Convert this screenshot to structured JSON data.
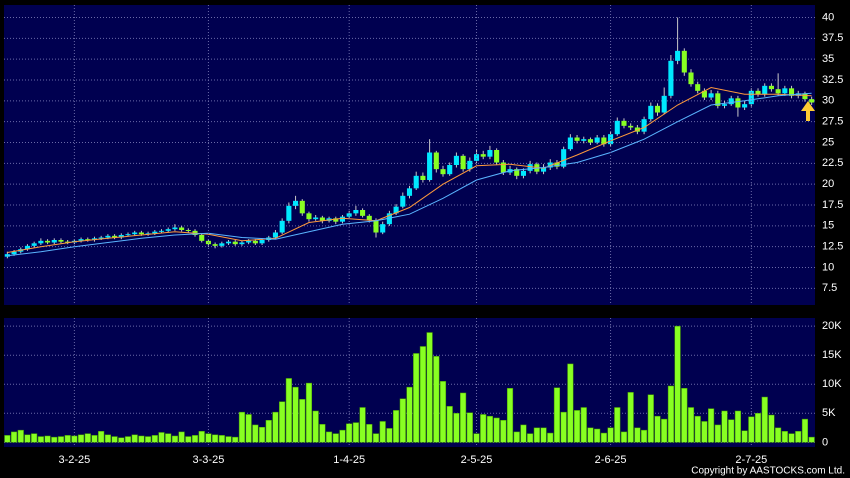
{
  "chart_data": [
    {
      "type": "candlestick",
      "up_color": "#00e8ff",
      "down_color": "#88ff22",
      "ylim": [
        5.5,
        41.5
      ],
      "yticks": [
        7.5,
        10,
        12.5,
        15,
        17.5,
        20,
        22.5,
        25,
        27.5,
        30,
        32.5,
        35,
        37.5,
        40
      ],
      "grid": true,
      "open": [
        11.3,
        11.6,
        11.9,
        12.2,
        12.6,
        12.9,
        13.2,
        13.0,
        13.3,
        13.1,
        13.0,
        13.2,
        13.4,
        13.3,
        13.5,
        13.6,
        13.8,
        13.6,
        13.9,
        14.0,
        14.2,
        14.0,
        14.1,
        14.3,
        14.4,
        14.6,
        14.8,
        14.5,
        14.4,
        13.9,
        13.2,
        12.8,
        12.6,
        12.9,
        13.1,
        12.8,
        13.0,
        13.2,
        12.9,
        13.3,
        13.6,
        14.2,
        15.6,
        17.4,
        18.0,
        16.5,
        15.8,
        16.0,
        15.6,
        15.9,
        15.5,
        16.1,
        16.5,
        16.9,
        16.2,
        15.7,
        14.2,
        15.2,
        16.5,
        17.3,
        18.6,
        19.5,
        21.0,
        20.5,
        23.8,
        21.8,
        21.2,
        22.3,
        23.4,
        21.8,
        22.8,
        23.6,
        23.3,
        24.1,
        22.6,
        21.4,
        21.8,
        21.0,
        21.6,
        22.4,
        21.5,
        22.0,
        22.6,
        22.1,
        24.2,
        25.6,
        25.2,
        25.4,
        25.0,
        25.6,
        24.8,
        26.0,
        27.6,
        27.0,
        26.8,
        26.3,
        27.8,
        29.4,
        28.6,
        30.6,
        34.8,
        36.0,
        33.4,
        32.0,
        31.2,
        30.4,
        30.9,
        29.4,
        29.6,
        30.3,
        29.2,
        29.6,
        31.2,
        30.8,
        31.8,
        31.4,
        30.9,
        31.5,
        30.6,
        30.9,
        30.2
      ],
      "high": [
        11.9,
        12.1,
        12.4,
        12.8,
        13.1,
        13.5,
        13.4,
        13.5,
        13.5,
        13.3,
        13.4,
        13.6,
        13.6,
        13.7,
        13.8,
        14.0,
        14.0,
        14.1,
        14.2,
        14.4,
        14.4,
        14.3,
        14.5,
        14.6,
        14.8,
        15.2,
        15.0,
        14.7,
        14.6,
        14.1,
        13.4,
        13.0,
        13.1,
        13.3,
        13.3,
        13.2,
        13.4,
        13.4,
        13.5,
        13.8,
        14.5,
        15.9,
        17.8,
        18.6,
        18.2,
        16.7,
        16.3,
        16.2,
        16.1,
        16.1,
        16.3,
        16.8,
        17.4,
        17.1,
        16.4,
        15.9,
        15.5,
        16.8,
        17.6,
        19.0,
        19.8,
        21.5,
        21.4,
        25.4,
        24.0,
        22.2,
        22.6,
        23.8,
        23.6,
        23.2,
        24.2,
        24.0,
        24.6,
        24.3,
        22.9,
        22.2,
        22.0,
        21.9,
        22.8,
        22.6,
        22.4,
        23.0,
        22.9,
        24.5,
        26.0,
        25.9,
        25.7,
        25.6,
        25.9,
        25.9,
        26.3,
        28.0,
        27.9,
        27.3,
        27.1,
        28.1,
        29.8,
        29.7,
        31.6,
        35.5,
        40.0,
        36.3,
        33.8,
        32.3,
        31.5,
        31.3,
        31.2,
        30.0,
        30.6,
        30.6,
        30.0,
        31.5,
        31.5,
        32.1,
        32.1,
        33.3,
        31.8,
        31.8,
        31.2,
        31.1,
        30.5
      ],
      "low": [
        11.1,
        11.4,
        11.7,
        12.0,
        12.4,
        12.7,
        12.8,
        12.8,
        12.9,
        12.8,
        12.8,
        13.0,
        13.1,
        13.1,
        13.3,
        13.4,
        13.4,
        13.4,
        13.7,
        13.8,
        13.8,
        13.8,
        13.9,
        14.1,
        14.2,
        14.4,
        14.3,
        14.2,
        13.7,
        13.0,
        12.5,
        12.3,
        12.4,
        12.7,
        12.6,
        12.6,
        12.8,
        12.7,
        12.7,
        13.1,
        13.4,
        14.0,
        15.3,
        17.0,
        16.2,
        15.5,
        15.6,
        15.3,
        15.4,
        15.2,
        15.3,
        15.9,
        16.2,
        16.0,
        15.4,
        13.6,
        14.0,
        15.0,
        16.3,
        17.1,
        18.3,
        19.3,
        20.2,
        20.3,
        21.4,
        20.9,
        21.0,
        22.0,
        21.5,
        21.5,
        22.5,
        23.0,
        23.0,
        22.3,
        21.1,
        21.1,
        20.6,
        20.7,
        21.3,
        21.2,
        21.2,
        21.7,
        21.8,
        21.9,
        24.0,
        24.9,
        24.9,
        24.7,
        24.8,
        24.5,
        24.5,
        25.8,
        26.7,
        26.5,
        26.0,
        26.0,
        27.5,
        28.2,
        28.4,
        30.3,
        34.4,
        33.0,
        31.7,
        30.9,
        30.1,
        30.1,
        29.1,
        29.1,
        29.4,
        28.1,
        28.9,
        29.3,
        30.5,
        30.5,
        31.1,
        30.6,
        30.6,
        30.3,
        30.3,
        29.9,
        29.5
      ],
      "close": [
        11.6,
        11.9,
        12.2,
        12.6,
        12.9,
        13.2,
        13.0,
        13.3,
        13.1,
        13.0,
        13.2,
        13.4,
        13.3,
        13.5,
        13.6,
        13.8,
        13.6,
        13.9,
        14.0,
        14.2,
        14.0,
        14.1,
        14.3,
        14.4,
        14.6,
        14.8,
        14.5,
        14.4,
        13.9,
        13.2,
        12.8,
        12.6,
        12.9,
        13.1,
        12.8,
        13.0,
        13.2,
        12.9,
        13.3,
        13.6,
        14.2,
        15.6,
        17.4,
        18.0,
        16.5,
        15.8,
        16.0,
        15.6,
        15.9,
        15.5,
        16.1,
        16.5,
        16.9,
        16.2,
        15.7,
        14.2,
        15.2,
        16.5,
        17.3,
        18.6,
        19.5,
        21.0,
        20.5,
        23.8,
        21.8,
        21.2,
        22.3,
        23.4,
        21.8,
        22.8,
        23.6,
        23.3,
        24.1,
        22.6,
        21.4,
        21.8,
        21.0,
        21.6,
        22.4,
        21.5,
        22.0,
        22.6,
        22.1,
        24.2,
        25.6,
        25.2,
        25.4,
        25.0,
        25.6,
        24.8,
        26.0,
        27.6,
        27.0,
        26.8,
        26.3,
        27.8,
        29.4,
        28.6,
        30.6,
        34.8,
        36.0,
        33.4,
        32.0,
        31.2,
        30.4,
        30.9,
        29.4,
        29.6,
        30.3,
        29.2,
        29.6,
        31.2,
        30.8,
        31.8,
        31.4,
        30.9,
        31.5,
        30.6,
        30.9,
        30.2,
        29.8
      ],
      "lines": [
        {
          "color": "#ff9a3c",
          "x": [
            0,
            5,
            10,
            15,
            20,
            25,
            30,
            35,
            40,
            45,
            50,
            55,
            60,
            65,
            70,
            75,
            80,
            85,
            90,
            95,
            100,
            105,
            110,
            115,
            120
          ],
          "values": [
            11.8,
            12.5,
            13.1,
            13.5,
            13.9,
            14.3,
            14.0,
            13.2,
            13.5,
            15.4,
            15.9,
            15.6,
            17.2,
            20.0,
            22.2,
            22.4,
            21.9,
            23.5,
            25.2,
            26.8,
            29.5,
            31.6,
            30.8,
            30.8,
            30.6
          ]
        },
        {
          "color": "#5ab4ff",
          "x": [
            0,
            5,
            10,
            15,
            20,
            25,
            30,
            35,
            40,
            45,
            50,
            55,
            60,
            65,
            70,
            75,
            80,
            85,
            90,
            95,
            100,
            105,
            110,
            115,
            120
          ],
          "values": [
            11.4,
            11.9,
            12.5,
            13.0,
            13.5,
            13.9,
            14.1,
            13.6,
            13.4,
            14.3,
            15.2,
            15.6,
            16.4,
            18.3,
            20.5,
            21.6,
            22.0,
            22.6,
            23.8,
            25.4,
            27.5,
            29.5,
            30.0,
            30.6,
            30.9
          ]
        }
      ]
    },
    {
      "type": "bar",
      "color": "#88ff22",
      "ylim": [
        -800,
        21400
      ],
      "yticks": [
        0,
        {
          "value": 5000,
          "label": "5K"
        },
        {
          "value": 10000,
          "label": "10K"
        },
        {
          "value": 15000,
          "label": "15K"
        },
        {
          "value": 20000,
          "label": "20K"
        }
      ],
      "grid": true,
      "categories": [
        null,
        null,
        null,
        null,
        null,
        null,
        null,
        null,
        null,
        null,
        "3-2-25",
        null,
        null,
        null,
        null,
        null,
        null,
        null,
        null,
        null,
        null,
        null,
        null,
        null,
        null,
        null,
        null,
        null,
        null,
        null,
        "3-3-25",
        null,
        null,
        null,
        null,
        null,
        null,
        null,
        null,
        null,
        null,
        null,
        null,
        null,
        null,
        null,
        null,
        null,
        null,
        null,
        null,
        "1-4-25",
        null,
        null,
        null,
        null,
        null,
        null,
        null,
        null,
        null,
        null,
        null,
        null,
        null,
        null,
        null,
        null,
        null,
        null,
        "2-5-25",
        null,
        null,
        null,
        null,
        null,
        null,
        null,
        null,
        null,
        null,
        null,
        null,
        null,
        null,
        null,
        null,
        null,
        null,
        null,
        "2-6-25",
        null,
        null,
        null,
        null,
        null,
        null,
        null,
        null,
        null,
        null,
        null,
        null,
        null,
        null,
        null,
        null,
        null,
        null,
        null,
        null,
        "2-7-25",
        null,
        null,
        null,
        null,
        null,
        null,
        null,
        null,
        null
      ],
      "values": [
        1200,
        1800,
        2100,
        1300,
        1500,
        1000,
        1100,
        900,
        1000,
        1200,
        1100,
        1300,
        1500,
        1200,
        1900,
        1300,
        1000,
        800,
        1000,
        1300,
        1100,
        1000,
        1200,
        1700,
        1500,
        1100,
        1800,
        1000,
        1200,
        1900,
        1500,
        1300,
        1200,
        1000,
        900,
        5200,
        4800,
        3000,
        2600,
        3800,
        5200,
        7000,
        11000,
        9500,
        7400,
        10200,
        5400,
        3100,
        1800,
        1500,
        2100,
        3200,
        3400,
        6000,
        3100,
        1500,
        3600,
        2400,
        5500,
        7500,
        9500,
        15300,
        16500,
        18900,
        14800,
        10500,
        6200,
        5000,
        8500,
        5100,
        1500,
        4800,
        4500,
        4200,
        3800,
        9300,
        1800,
        3000,
        1500,
        2500,
        2500,
        1600,
        9400,
        5200,
        13500,
        5500,
        6000,
        2500,
        2300,
        1600,
        2500,
        6000,
        1800,
        8600,
        2500,
        2100,
        8200,
        4500,
        4000,
        9700,
        20000,
        9300,
        6000,
        4500,
        3600,
        5800,
        3000,
        5400,
        3900,
        5400,
        2000,
        4400,
        5000,
        7800,
        4700,
        2500,
        1900,
        1500,
        1900,
        4000,
        900
      ]
    },
    {
      "type": "text",
      "copyright": "Copyright by AASTOCKS.com Ltd."
    }
  ]
}
